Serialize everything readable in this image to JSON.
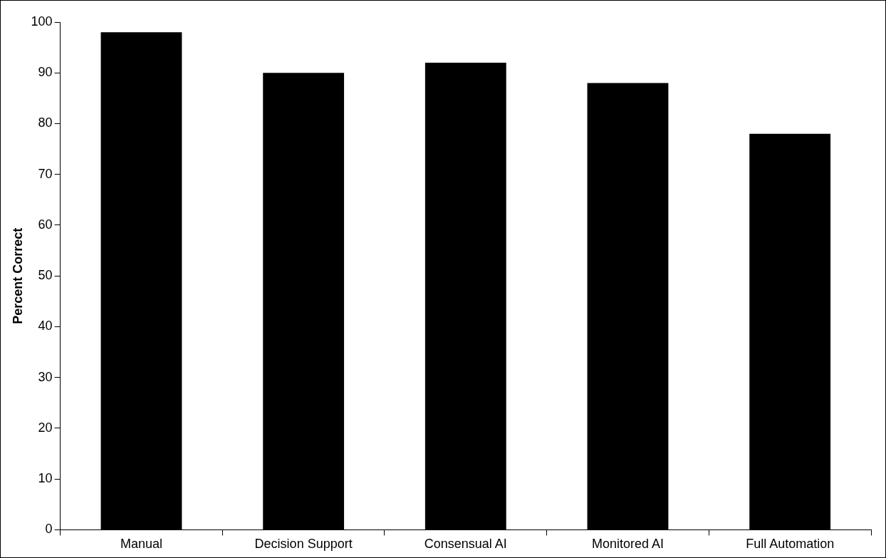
{
  "chart_data": {
    "type": "bar",
    "ylabel": "Percent Correct",
    "categories": [
      "Manual",
      "Decision Support",
      "Consensual AI",
      "Monitored AI",
      "Full Automation"
    ],
    "values": [
      98,
      90,
      92,
      88,
      78
    ],
    "color": "#000000",
    "ylim": [
      0,
      100
    ],
    "yticks": [
      0,
      10,
      20,
      30,
      40,
      50,
      60,
      70,
      80,
      90,
      100
    ],
    "grid": false,
    "legend": false
  }
}
